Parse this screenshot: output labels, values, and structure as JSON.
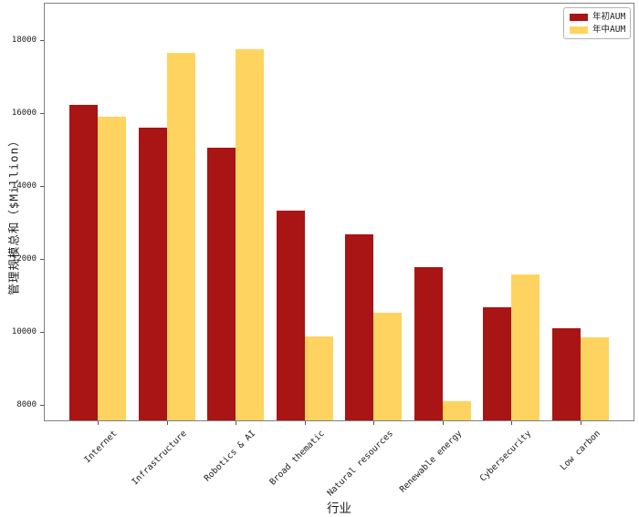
{
  "chart_data": {
    "type": "bar",
    "title": "",
    "xlabel": "行业",
    "ylabel": "管理规模总和（$Million）",
    "categories": [
      "Internet",
      "Infrastructure",
      "Robotics & AI",
      "Broad thematic",
      "Natural resources",
      "Renewable energy",
      "Cybersecurity",
      "Low carbon"
    ],
    "series": [
      {
        "name": "年初AUM",
        "color": "#A91414",
        "values": [
          16220,
          15590,
          15040,
          13330,
          12680,
          11780,
          10670,
          10100
        ]
      },
      {
        "name": "年中AUM",
        "color": "#FFD35F",
        "values": [
          15890,
          17650,
          17740,
          9870,
          10530,
          8100,
          11570,
          9850
        ]
      }
    ],
    "yticks": [
      8000,
      10000,
      12000,
      14000,
      16000,
      18000
    ],
    "ylim": [
      7550,
      19025
    ],
    "grid": false,
    "legend_position": "upper-right"
  },
  "axes_style": {
    "spine_color": "#808080",
    "tick_color": "#555555",
    "text_color": "#1c1c1c",
    "background": "#ffffff"
  }
}
